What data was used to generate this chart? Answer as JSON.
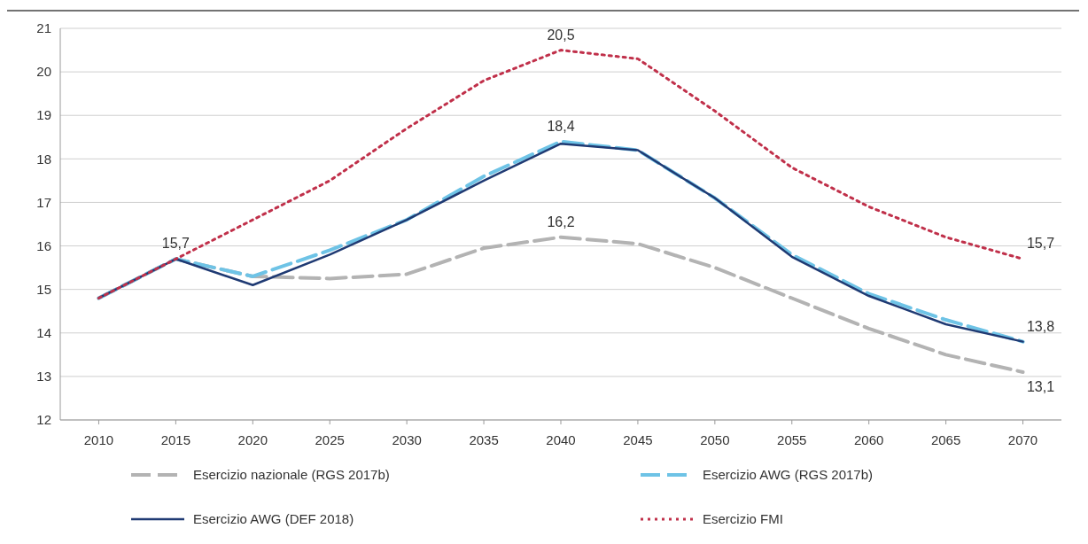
{
  "chart_data": {
    "type": "line",
    "categories": [
      "2010",
      "2015",
      "2020",
      "2025",
      "2030",
      "2035",
      "2040",
      "2045",
      "2050",
      "2055",
      "2060",
      "2065",
      "2070"
    ],
    "series": [
      {
        "name": "Esercizio nazionale (RGS 2017b)",
        "color": "#b3b3b3",
        "line_style": "dashed",
        "values": [
          14.8,
          15.7,
          15.3,
          15.25,
          15.35,
          15.95,
          16.2,
          16.05,
          15.5,
          14.8,
          14.1,
          13.5,
          13.1
        ]
      },
      {
        "name": "Esercizio AWG (RGS 2017b)",
        "color": "#6ec3e6",
        "line_style": "dashed",
        "values": [
          14.8,
          15.7,
          15.3,
          15.9,
          16.6,
          17.6,
          18.4,
          18.2,
          17.1,
          15.8,
          14.9,
          14.3,
          13.8
        ]
      },
      {
        "name": "Esercizio AWG (DEF 2018)",
        "color": "#1f3a73",
        "line_style": "solid",
        "values": [
          14.8,
          15.7,
          15.1,
          15.8,
          16.6,
          17.5,
          18.35,
          18.2,
          17.1,
          15.75,
          14.85,
          14.2,
          13.8
        ]
      },
      {
        "name": "Esercizio FMI",
        "color": "#c0304a",
        "line_style": "dotted",
        "values": [
          14.8,
          15.7,
          16.6,
          17.5,
          18.7,
          19.8,
          20.5,
          20.3,
          19.1,
          17.8,
          16.9,
          16.2,
          15.7
        ]
      }
    ],
    "ylim": [
      12,
      21
    ],
    "yticks": [
      12,
      13,
      14,
      15,
      16,
      17,
      18,
      19,
      20,
      21
    ],
    "grid": "y",
    "legend": "bottom",
    "marker": "none",
    "annotations": [
      {
        "text": "15,7",
        "x": "2015",
        "y": 15.7
      },
      {
        "text": "20,5",
        "x": "2040",
        "y": 20.5
      },
      {
        "text": "18,4",
        "x": "2040",
        "y": 18.4
      },
      {
        "text": "16,2",
        "x": "2040",
        "y": 16.2
      },
      {
        "text": "15,7",
        "x": "2070",
        "y": 15.7
      },
      {
        "text": "13,8",
        "x": "2070",
        "y": 13.8
      },
      {
        "text": "13,1",
        "x": "2070",
        "y": 13.1
      }
    ]
  }
}
